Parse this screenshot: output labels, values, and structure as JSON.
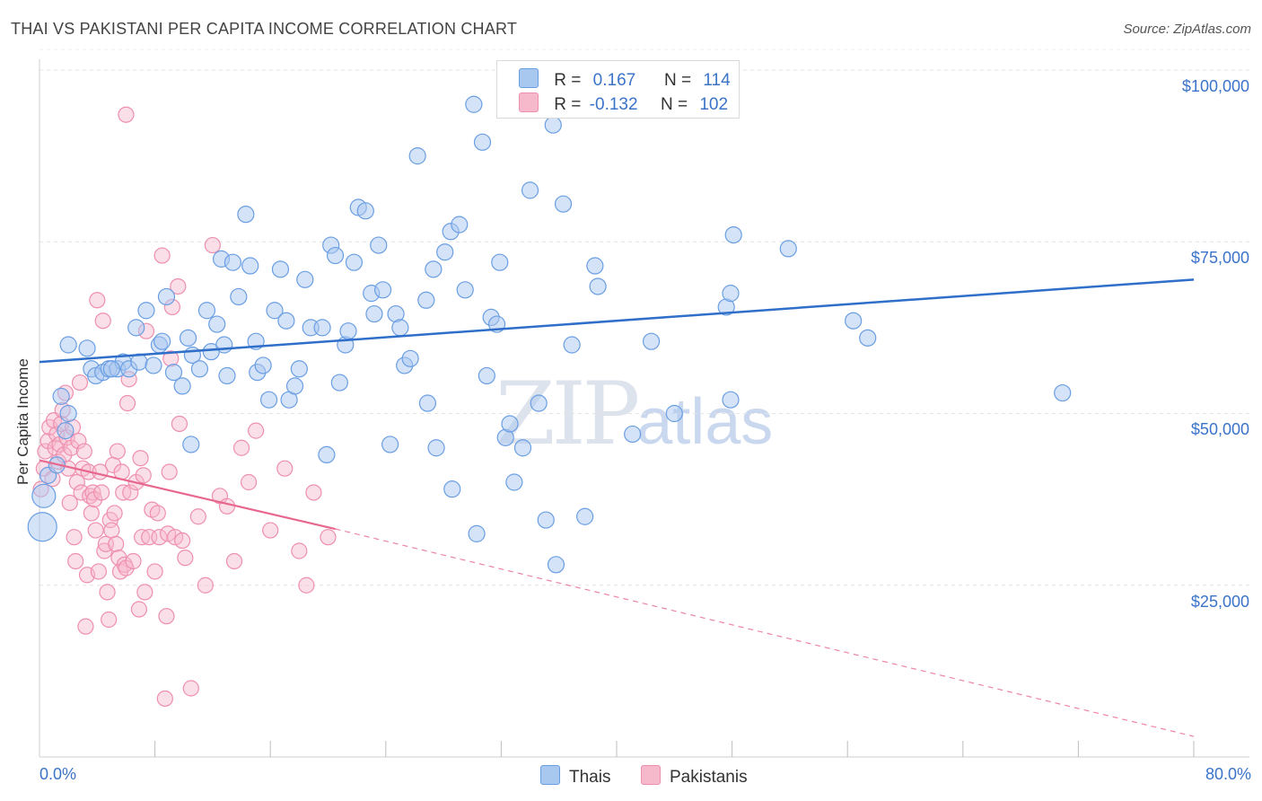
{
  "header": {
    "title": "THAI VS PAKISTANI PER CAPITA INCOME CORRELATION CHART",
    "source": "Source: ZipAtlas.com"
  },
  "watermark": {
    "zip": "ZIP",
    "atlas": "atlas"
  },
  "legend": {
    "thai": {
      "r_label": "R =",
      "r_value": "0.167",
      "n_label": "N =",
      "n_value": "114"
    },
    "pakistani": {
      "r_label": "R =",
      "r_value": "-0.132",
      "n_label": "N =",
      "n_value": "102"
    }
  },
  "bottom_legend": {
    "thai": "Thais",
    "pakistani": "Pakistanis"
  },
  "axes": {
    "ylabel": "Per Capita Income",
    "x_min_label": "0.0%",
    "x_max_label": "80.0%",
    "y_ticks": [
      "$100,000",
      "$75,000",
      "$50,000",
      "$25,000"
    ]
  },
  "colors": {
    "thai_fill": "#a9c8f0",
    "thai_stroke": "#6a9ee3",
    "thai_line": "#2f6fc9",
    "pak_fill": "#f6b8cb",
    "pak_stroke": "#ee8fae",
    "pak_line": "#e8678f",
    "tick_text": "#3b73c9"
  },
  "chart_data": {
    "type": "scatter",
    "xlim": [
      0,
      80
    ],
    "ylim": [
      0,
      103000
    ],
    "x_unit": "%",
    "y_unit": "$",
    "grid": true,
    "legend_position": "top-center",
    "series": [
      {
        "name": "Thais",
        "trend": {
          "x": [
            0,
            80
          ],
          "y": [
            57500,
            69500
          ]
        },
        "points": [
          [
            0.2,
            33500
          ],
          [
            0.3,
            38000
          ],
          [
            0.6,
            41000
          ],
          [
            1.2,
            42500
          ],
          [
            1.5,
            52500
          ],
          [
            2.0,
            50000
          ],
          [
            1.8,
            47500
          ],
          [
            3.3,
            59500
          ],
          [
            3.6,
            56500
          ],
          [
            3.9,
            55500
          ],
          [
            4.4,
            56000
          ],
          [
            4.8,
            56500
          ],
          [
            5.4,
            56500
          ],
          [
            5.8,
            57500
          ],
          [
            6.2,
            56500
          ],
          [
            6.7,
            62500
          ],
          [
            6.9,
            57500
          ],
          [
            7.4,
            65000
          ],
          [
            7.9,
            57000
          ],
          [
            8.3,
            60000
          ],
          [
            8.5,
            60500
          ],
          [
            8.8,
            67000
          ],
          [
            9.3,
            56000
          ],
          [
            9.9,
            54000
          ],
          [
            10.3,
            61000
          ],
          [
            10.6,
            58500
          ],
          [
            11.1,
            56500
          ],
          [
            11.6,
            65000
          ],
          [
            11.9,
            59000
          ],
          [
            12.3,
            63000
          ],
          [
            12.6,
            72500
          ],
          [
            13.0,
            55500
          ],
          [
            13.4,
            72000
          ],
          [
            13.8,
            67000
          ],
          [
            14.3,
            79000
          ],
          [
            14.6,
            71500
          ],
          [
            15.1,
            56000
          ],
          [
            15.5,
            57000
          ],
          [
            15.9,
            52000
          ],
          [
            16.3,
            65000
          ],
          [
            16.7,
            71000
          ],
          [
            17.1,
            63500
          ],
          [
            17.3,
            52000
          ],
          [
            17.7,
            54000
          ],
          [
            18.0,
            56500
          ],
          [
            18.4,
            69500
          ],
          [
            18.8,
            62500
          ],
          [
            19.6,
            62500
          ],
          [
            19.9,
            44000
          ],
          [
            20.2,
            74500
          ],
          [
            20.5,
            73000
          ],
          [
            20.8,
            54500
          ],
          [
            21.2,
            60000
          ],
          [
            21.4,
            62000
          ],
          [
            21.8,
            72000
          ],
          [
            22.1,
            80000
          ],
          [
            22.6,
            79500
          ],
          [
            23.0,
            67500
          ],
          [
            23.2,
            64500
          ],
          [
            23.5,
            74500
          ],
          [
            23.8,
            68000
          ],
          [
            24.3,
            45500
          ],
          [
            24.7,
            64500
          ],
          [
            25.0,
            62500
          ],
          [
            25.3,
            57000
          ],
          [
            25.7,
            58000
          ],
          [
            26.2,
            87500
          ],
          [
            26.8,
            66500
          ],
          [
            26.9,
            51500
          ],
          [
            27.3,
            71000
          ],
          [
            27.5,
            45000
          ],
          [
            28.1,
            73500
          ],
          [
            28.5,
            76500
          ],
          [
            28.6,
            39000
          ],
          [
            29.1,
            77500
          ],
          [
            29.5,
            68000
          ],
          [
            30.1,
            95000
          ],
          [
            30.3,
            32500
          ],
          [
            30.7,
            89500
          ],
          [
            31.0,
            55500
          ],
          [
            31.3,
            64000
          ],
          [
            31.7,
            63000
          ],
          [
            31.9,
            72000
          ],
          [
            32.3,
            46500
          ],
          [
            32.6,
            48500
          ],
          [
            32.9,
            40000
          ],
          [
            33.5,
            45000
          ],
          [
            34.0,
            82500
          ],
          [
            34.6,
            51500
          ],
          [
            35.1,
            34500
          ],
          [
            35.6,
            92000
          ],
          [
            35.8,
            28000
          ],
          [
            36.3,
            80500
          ],
          [
            36.9,
            60000
          ],
          [
            37.8,
            35000
          ],
          [
            38.5,
            71500
          ],
          [
            38.7,
            68500
          ],
          [
            41.1,
            47000
          ],
          [
            42.4,
            60500
          ],
          [
            44.0,
            50000
          ],
          [
            47.6,
            65500
          ],
          [
            47.9,
            67500
          ],
          [
            47.9,
            52000
          ],
          [
            48.1,
            76000
          ],
          [
            51.9,
            74000
          ],
          [
            56.4,
            63500
          ],
          [
            57.4,
            61000
          ],
          [
            70.9,
            53000
          ],
          [
            2.0,
            60000
          ],
          [
            5.0,
            56500
          ],
          [
            10.5,
            45500
          ],
          [
            12.8,
            60000
          ],
          [
            15.0,
            60500
          ]
        ]
      },
      {
        "name": "Pakistanis",
        "trend": {
          "x": [
            0,
            20.5
          ],
          "y": [
            43200,
            33200
          ]
        },
        "trend_extension": {
          "x": [
            20.5,
            80
          ],
          "y": [
            33200,
            3000
          ]
        },
        "points": [
          [
            0.1,
            39000
          ],
          [
            0.3,
            42000
          ],
          [
            0.4,
            44500
          ],
          [
            0.6,
            46000
          ],
          [
            0.7,
            48000
          ],
          [
            0.9,
            40500
          ],
          [
            1.0,
            49000
          ],
          [
            1.1,
            45000
          ],
          [
            1.2,
            47000
          ],
          [
            1.3,
            43000
          ],
          [
            1.4,
            45500
          ],
          [
            1.5,
            48500
          ],
          [
            1.6,
            50500
          ],
          [
            1.7,
            44000
          ],
          [
            1.8,
            53000
          ],
          [
            1.9,
            46500
          ],
          [
            2.0,
            42000
          ],
          [
            2.1,
            37000
          ],
          [
            2.2,
            45000
          ],
          [
            2.3,
            48000
          ],
          [
            2.4,
            32000
          ],
          [
            2.5,
            28500
          ],
          [
            2.6,
            40000
          ],
          [
            2.7,
            46000
          ],
          [
            2.8,
            54500
          ],
          [
            2.9,
            38500
          ],
          [
            3.0,
            42000
          ],
          [
            3.1,
            44500
          ],
          [
            3.2,
            19000
          ],
          [
            3.3,
            26500
          ],
          [
            3.4,
            41500
          ],
          [
            3.5,
            38000
          ],
          [
            3.6,
            35500
          ],
          [
            3.7,
            38500
          ],
          [
            3.8,
            37500
          ],
          [
            3.9,
            33000
          ],
          [
            4.0,
            66500
          ],
          [
            4.1,
            27000
          ],
          [
            4.2,
            41500
          ],
          [
            4.3,
            38500
          ],
          [
            4.4,
            63500
          ],
          [
            4.5,
            30000
          ],
          [
            4.6,
            31000
          ],
          [
            4.7,
            24000
          ],
          [
            4.8,
            20000
          ],
          [
            4.9,
            34500
          ],
          [
            5.0,
            33000
          ],
          [
            5.1,
            42500
          ],
          [
            5.2,
            35500
          ],
          [
            5.3,
            31000
          ],
          [
            5.4,
            44500
          ],
          [
            5.5,
            29000
          ],
          [
            5.6,
            27000
          ],
          [
            5.7,
            41500
          ],
          [
            5.8,
            38500
          ],
          [
            5.9,
            28000
          ],
          [
            6.0,
            27500
          ],
          [
            6.1,
            51500
          ],
          [
            6.2,
            55000
          ],
          [
            6.3,
            38500
          ],
          [
            6.5,
            28500
          ],
          [
            6.7,
            40000
          ],
          [
            6.9,
            21500
          ],
          [
            7.0,
            43500
          ],
          [
            7.1,
            32000
          ],
          [
            7.2,
            41000
          ],
          [
            7.3,
            24000
          ],
          [
            7.4,
            62000
          ],
          [
            7.6,
            32000
          ],
          [
            7.8,
            36000
          ],
          [
            8.0,
            27000
          ],
          [
            8.2,
            35500
          ],
          [
            8.3,
            32000
          ],
          [
            8.5,
            73000
          ],
          [
            8.7,
            8500
          ],
          [
            8.8,
            20500
          ],
          [
            8.9,
            32500
          ],
          [
            9.0,
            41500
          ],
          [
            9.1,
            58000
          ],
          [
            9.2,
            65500
          ],
          [
            9.4,
            32000
          ],
          [
            9.6,
            68500
          ],
          [
            9.7,
            48500
          ],
          [
            9.9,
            31500
          ],
          [
            10.1,
            29000
          ],
          [
            10.5,
            10000
          ],
          [
            11.0,
            35000
          ],
          [
            11.5,
            25000
          ],
          [
            12.0,
            74500
          ],
          [
            12.5,
            38000
          ],
          [
            13.0,
            36500
          ],
          [
            13.5,
            28500
          ],
          [
            14.0,
            45000
          ],
          [
            14.5,
            40000
          ],
          [
            15.0,
            47500
          ],
          [
            16.0,
            33000
          ],
          [
            17.0,
            42000
          ],
          [
            18.0,
            30000
          ],
          [
            18.5,
            25000
          ],
          [
            19.0,
            38500
          ],
          [
            20.0,
            32000
          ],
          [
            6.0,
            93500
          ]
        ]
      }
    ]
  }
}
